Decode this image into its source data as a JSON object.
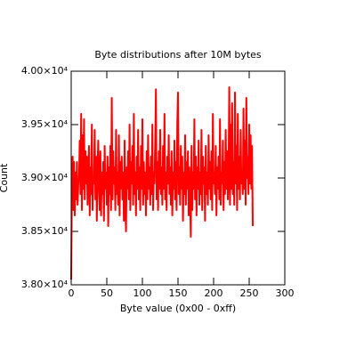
{
  "chart_data": {
    "type": "line",
    "title": "Byte distributions after 10M bytes",
    "xlabel": "Byte value (0x00 - 0xff)",
    "ylabel": "Count",
    "color": "#ff0000",
    "x": [
      0,
      1,
      2,
      3,
      4,
      5,
      6,
      7,
      8,
      9,
      10,
      11,
      12,
      13,
      14,
      15,
      16,
      17,
      18,
      19,
      20,
      21,
      22,
      23,
      24,
      25,
      26,
      27,
      28,
      29,
      30,
      31,
      32,
      33,
      34,
      35,
      36,
      37,
      38,
      39,
      40,
      41,
      42,
      43,
      44,
      45,
      46,
      47,
      48,
      49,
      50,
      51,
      52,
      53,
      54,
      55,
      56,
      57,
      58,
      59,
      60,
      61,
      62,
      63,
      64,
      65,
      66,
      67,
      68,
      69,
      70,
      71,
      72,
      73,
      74,
      75,
      76,
      77,
      78,
      79,
      80,
      81,
      82,
      83,
      84,
      85,
      86,
      87,
      88,
      89,
      90,
      91,
      92,
      93,
      94,
      95,
      96,
      97,
      98,
      99,
      100,
      101,
      102,
      103,
      104,
      105,
      106,
      107,
      108,
      109,
      110,
      111,
      112,
      113,
      114,
      115,
      116,
      117,
      118,
      119,
      120,
      121,
      122,
      123,
      124,
      125,
      126,
      127,
      128,
      129,
      130,
      131,
      132,
      133,
      134,
      135,
      136,
      137,
      138,
      139,
      140,
      141,
      142,
      143,
      144,
      145,
      146,
      147,
      148,
      149,
      150,
      151,
      152,
      153,
      154,
      155,
      156,
      157,
      158,
      159,
      160,
      161,
      162,
      163,
      164,
      165,
      166,
      167,
      168,
      169,
      170,
      171,
      172,
      173,
      174,
      175,
      176,
      177,
      178,
      179,
      180,
      181,
      182,
      183,
      184,
      185,
      186,
      187,
      188,
      189,
      190,
      191,
      192,
      193,
      194,
      195,
      196,
      197,
      198,
      199,
      200,
      201,
      202,
      203,
      204,
      205,
      206,
      207,
      208,
      209,
      210,
      211,
      212,
      213,
      214,
      215,
      216,
      217,
      218,
      219,
      220,
      221,
      222,
      223,
      224,
      225,
      226,
      227,
      228,
      229,
      230,
      231,
      232,
      233,
      234,
      235,
      236,
      237,
      238,
      239,
      240,
      241,
      242,
      243,
      244,
      245,
      246,
      247,
      248,
      249,
      250,
      251,
      252,
      253,
      254,
      255
    ],
    "values": [
      38050,
      38900,
      39200,
      38700,
      39150,
      38650,
      39050,
      38800,
      39150,
      38750,
      38950,
      39000,
      39350,
      38850,
      39600,
      38700,
      39400,
      38900,
      39550,
      38800,
      39250,
      38950,
      39200,
      38750,
      39050,
      39300,
      38650,
      39100,
      38850,
      39500,
      38700,
      39000,
      38950,
      39450,
      38800,
      39200,
      38600,
      39100,
      39350,
      38900,
      38700,
      39250,
      38650,
      39050,
      38850,
      39150,
      38600,
      39300,
      38900,
      39050,
      38750,
      39200,
      38550,
      39100,
      38850,
      39300,
      38700,
      39750,
      38800,
      39250,
      38950,
      39100,
      38700,
      39450,
      38850,
      39050,
      38750,
      39400,
      38650,
      39150,
      38900,
      39200,
      38800,
      39050,
      38600,
      39350,
      38750,
      38500,
      39100,
      38900,
      39250,
      38800,
      39500,
      38700,
      39150,
      38950,
      39300,
      38750,
      39600,
      38850,
      39050,
      38650,
      39200,
      38900,
      39450,
      38800,
      39100,
      38700,
      39300,
      38900,
      39550,
      38750,
      39150,
      38850,
      39050,
      38650,
      39250,
      38800,
      39400,
      38900,
      39100,
      38750,
      39200,
      38850,
      39500,
      38700,
      39050,
      38950,
      39350,
      39830,
      38800,
      39150,
      38700,
      39250,
      38900,
      39450,
      38850,
      39100,
      38750,
      39300,
      38900,
      39600,
      38800,
      39050,
      38700,
      39200,
      38950,
      39400,
      38850,
      39100,
      38750,
      39250,
      38650,
      39050,
      38900,
      39350,
      38800,
      39150,
      38700,
      39500,
      39800,
      38850,
      39100,
      38750,
      39300,
      38900,
      39200,
      38600,
      39050,
      38850,
      39400,
      38750,
      39150,
      38900,
      39250,
      38650,
      39100,
      38800,
      38450,
      39300,
      38700,
      39050,
      38900,
      39550,
      38800,
      39200,
      38650,
      39100,
      38900,
      39350,
      38750,
      39050,
      38850,
      39450,
      38700,
      39200,
      38950,
      39100,
      38600,
      39300,
      38850,
      39050,
      38750,
      39400,
      38900,
      39150,
      38800,
      39250,
      38700,
      39600,
      38950,
      39050,
      38850,
      39300,
      38650,
      39100,
      38900,
      39200,
      38800,
      39550,
      38750,
      39050,
      38950,
      39350,
      38700,
      39150,
      38850,
      39450,
      38900,
      39250,
      38800,
      39050,
      39850,
      38750,
      39500,
      38900,
      39700,
      38850,
      39150,
      38750,
      39800,
      38950,
      39300,
      38700,
      39600,
      38900,
      39200,
      38800,
      39450,
      38950,
      39050,
      38850,
      39650,
      38900,
      39350,
      38750,
      39750,
      39000,
      39200,
      38850,
      39500,
      38950,
      39400,
      38900,
      39300,
      38550
    ],
    "xlim": [
      0,
      300
    ],
    "xticks": [
      0,
      50,
      100,
      150,
      200,
      250,
      300
    ],
    "ylim": [
      38000,
      40000
    ],
    "yticks": [
      {
        "value": 38000,
        "label": "3.80×10⁴"
      },
      {
        "value": 38500,
        "label": "3.85×10⁴"
      },
      {
        "value": 39000,
        "label": "3.90×10⁴"
      },
      {
        "value": 39500,
        "label": "3.95×10⁴"
      },
      {
        "value": 40000,
        "label": "4.00×10⁴"
      }
    ]
  }
}
